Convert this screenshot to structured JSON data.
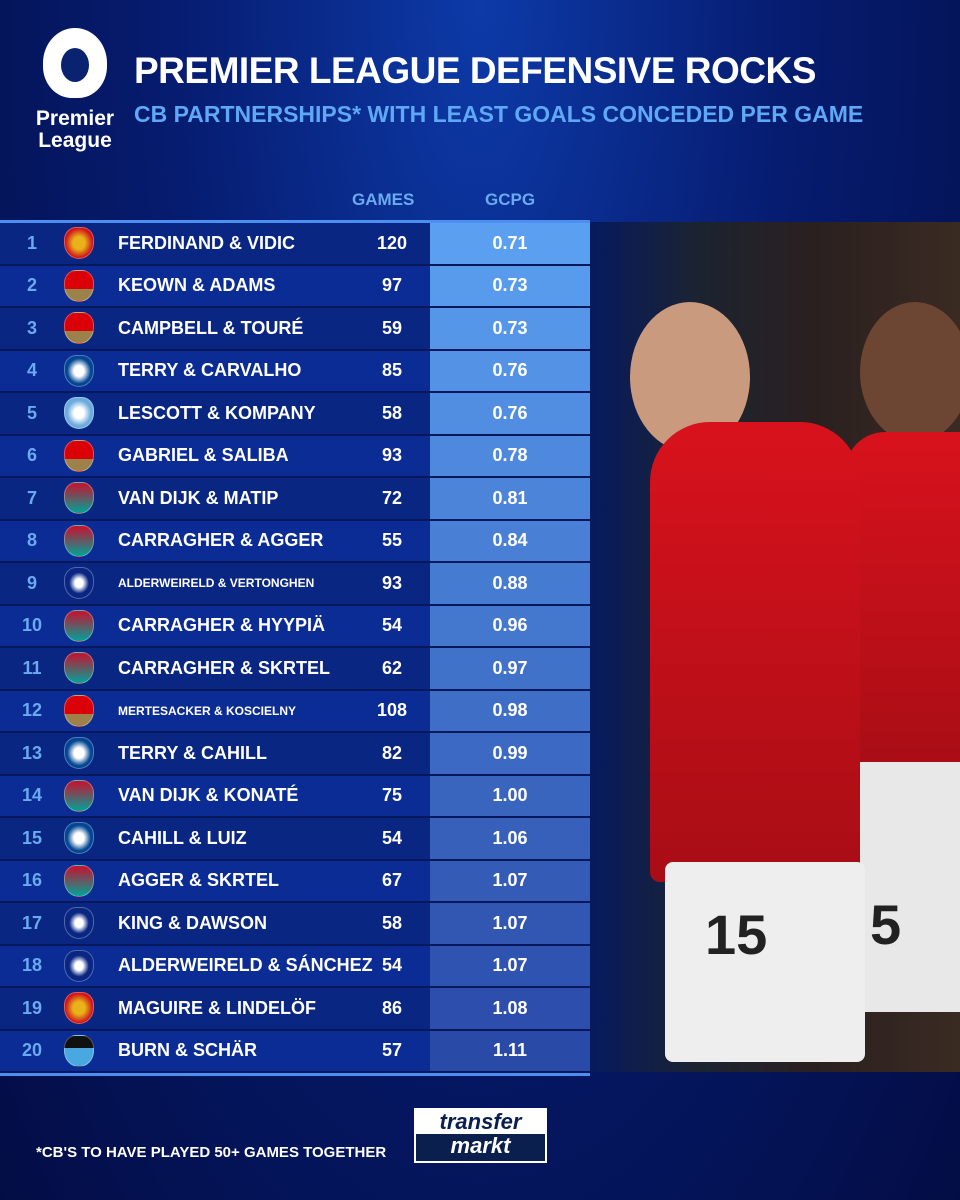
{
  "header": {
    "logo_text": "Premier League",
    "title": "PREMIER LEAGUE DEFENSIVE ROCKS",
    "subtitle": "CB PARTNERSHIPS* WITH LEAST GOALS CONCEDED PER GAME"
  },
  "columns": {
    "games": "GAMES",
    "gcpg": "GCPG"
  },
  "colors": {
    "gcpg_top": "#5b9ff0",
    "gcpg_bottom": "#2a4aa8",
    "title": "#ffffff",
    "subtitle": "#5fa8f5"
  },
  "rows": [
    {
      "rank": "1",
      "club": "manchester-united",
      "pair": "FERDINAND & VIDIC",
      "games": "120",
      "gcpg": "0.71"
    },
    {
      "rank": "2",
      "club": "arsenal",
      "pair": "KEOWN & ADAMS",
      "games": "97",
      "gcpg": "0.73"
    },
    {
      "rank": "3",
      "club": "arsenal",
      "pair": "CAMPBELL & TOURÉ",
      "games": "59",
      "gcpg": "0.73"
    },
    {
      "rank": "4",
      "club": "chelsea",
      "pair": "TERRY & CARVALHO",
      "games": "85",
      "gcpg": "0.76"
    },
    {
      "rank": "5",
      "club": "manchester-city",
      "pair": "LESCOTT & KOMPANY",
      "games": "58",
      "gcpg": "0.76"
    },
    {
      "rank": "6",
      "club": "arsenal",
      "pair": "GABRIEL & SALIBA",
      "games": "93",
      "gcpg": "0.78"
    },
    {
      "rank": "7",
      "club": "liverpool",
      "pair": "VAN DIJK & MATIP",
      "games": "72",
      "gcpg": "0.81"
    },
    {
      "rank": "8",
      "club": "liverpool",
      "pair": "CARRAGHER & AGGER",
      "games": "55",
      "gcpg": "0.84"
    },
    {
      "rank": "9",
      "club": "tottenham",
      "pair": "ALDERWEIRELD & VERTONGHEN",
      "games": "93",
      "gcpg": "0.88"
    },
    {
      "rank": "10",
      "club": "liverpool",
      "pair": "CARRAGHER & HYYPIÄ",
      "games": "54",
      "gcpg": "0.96"
    },
    {
      "rank": "11",
      "club": "liverpool",
      "pair": "CARRAGHER & SKRTEL",
      "games": "62",
      "gcpg": "0.97"
    },
    {
      "rank": "12",
      "club": "arsenal",
      "pair": "MERTESACKER & KOSCIELNY",
      "games": "108",
      "gcpg": "0.98"
    },
    {
      "rank": "13",
      "club": "chelsea",
      "pair": "TERRY & CAHILL",
      "games": "82",
      "gcpg": "0.99"
    },
    {
      "rank": "14",
      "club": "liverpool",
      "pair": "VAN DIJK & KONATÉ",
      "games": "75",
      "gcpg": "1.00"
    },
    {
      "rank": "15",
      "club": "chelsea",
      "pair": "CAHILL & LUIZ",
      "games": "54",
      "gcpg": "1.06"
    },
    {
      "rank": "16",
      "club": "liverpool",
      "pair": "AGGER & SKRTEL",
      "games": "67",
      "gcpg": "1.07"
    },
    {
      "rank": "17",
      "club": "tottenham",
      "pair": "KING & DAWSON",
      "games": "58",
      "gcpg": "1.07"
    },
    {
      "rank": "18",
      "club": "tottenham",
      "pair": "ALDERWEIRELD & SÁNCHEZ",
      "games": "54",
      "gcpg": "1.07"
    },
    {
      "rank": "19",
      "club": "manchester-united",
      "pair": "MAGUIRE & LINDELÖF",
      "games": "86",
      "gcpg": "1.08"
    },
    {
      "rank": "20",
      "club": "newcastle",
      "pair": "BURN & SCHÄR",
      "games": "57",
      "gcpg": "1.11"
    }
  ],
  "footer": {
    "note": "*CB'S TO HAVE PLAYED 50+ GAMES TOGETHER",
    "brand_top": "transfer",
    "brand_bottom": "markt"
  }
}
